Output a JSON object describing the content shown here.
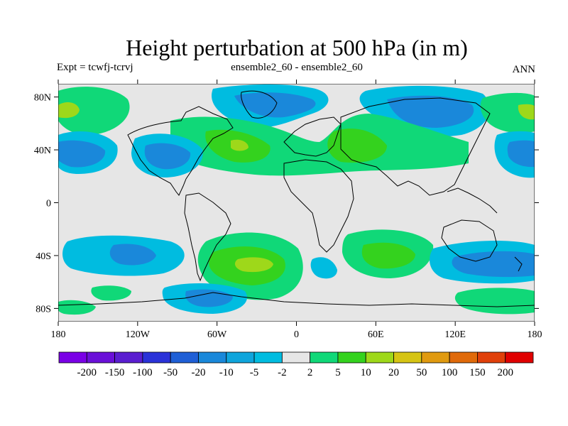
{
  "header": {
    "title": "Height perturbation at 500 hPa (in m)",
    "left_label": "Expt = tcwfj-tcrvj",
    "center_label": "ensemble2_60 - ensemble2_60",
    "right_label": "ANN"
  },
  "map": {
    "lat_ticks": [
      "80N",
      "40N",
      "0",
      "40S",
      "80S"
    ],
    "lon_ticks": [
      "180",
      "120W",
      "60W",
      "0",
      "60E",
      "120E",
      "180"
    ],
    "lat_tick_values": [
      80,
      40,
      0,
      -40,
      -80
    ],
    "lon_tick_values": [
      -180,
      -120,
      -60,
      0,
      60,
      120,
      180
    ],
    "lat_range": [
      -90,
      90
    ],
    "lon_range": [
      -180,
      180
    ]
  },
  "colorbar": {
    "colors": [
      "#7a00e6",
      "#6a10d8",
      "#5a1ed0",
      "#2a32d8",
      "#1f5fd6",
      "#1a88da",
      "#0fa5dc",
      "#00bce0",
      "#e6e6e6",
      "#10d878",
      "#34d21e",
      "#9ed81a",
      "#d6c414",
      "#e09a10",
      "#e06a0a",
      "#e0400a",
      "#e00000"
    ],
    "labels": [
      "-200",
      "-150",
      "-100",
      "-50",
      "-20",
      "-10",
      "-5",
      "-2",
      "2",
      "5",
      "10",
      "20",
      "50",
      "100",
      "150",
      "200"
    ]
  },
  "legend_colors": {
    "cyan": "#00bce0",
    "blue": "#1a88da",
    "neutral": "#e6e6e6",
    "green_light": "#10d878",
    "green": "#34d21e",
    "yellow_green": "#9ed81a"
  }
}
